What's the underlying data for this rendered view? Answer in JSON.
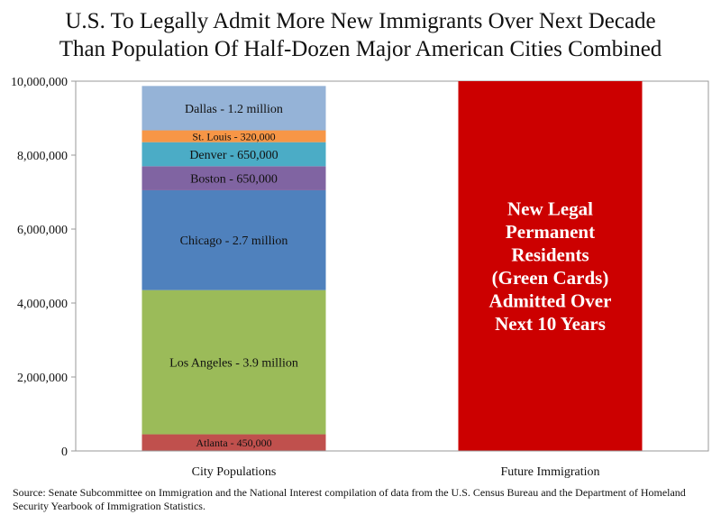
{
  "title_lines": [
    "U.S. To Legally Admit More New Immigrants Over Next Decade",
    "Than Population Of Half-Dozen Major American Cities Combined"
  ],
  "source": "Source: Senate Subcommittee on Immigration and the National Interest compilation of data from the U.S. Census Bureau and the Department of Homeland Security Yearbook of Immigration Statistics.",
  "colors": {
    "atlanta": "#C0504D",
    "los_angeles": "#9BBB59",
    "chicago": "#4F81BD",
    "boston": "#8064A2",
    "denver": "#4BACC6",
    "st_louis": "#F79646",
    "dallas": "#95B3D7",
    "future": "#CC0000",
    "axis": "#999999"
  },
  "chart_data": {
    "type": "bar",
    "stacked": true,
    "categories": [
      "City Populations",
      "Future Immigration"
    ],
    "ylim": [
      0,
      10000000
    ],
    "yticks": [
      0,
      2000000,
      4000000,
      6000000,
      8000000,
      10000000
    ],
    "ytick_labels": [
      "0",
      "2,000,000",
      "4,000,000",
      "6,000,000",
      "8,000,000",
      "10,000,000"
    ],
    "series": [
      {
        "key": "atlanta",
        "values": [
          450000,
          0
        ],
        "labels": [
          "Atlanta - 450,000",
          ""
        ]
      },
      {
        "key": "los_angeles",
        "values": [
          3900000,
          0
        ],
        "labels": [
          "Los Angeles - 3.9 million",
          ""
        ]
      },
      {
        "key": "chicago",
        "values": [
          2700000,
          0
        ],
        "labels": [
          "Chicago - 2.7 million",
          ""
        ]
      },
      {
        "key": "boston",
        "values": [
          650000,
          0
        ],
        "labels": [
          "Boston - 650,000",
          ""
        ]
      },
      {
        "key": "denver",
        "values": [
          650000,
          0
        ],
        "labels": [
          "Denver - 650,000",
          ""
        ]
      },
      {
        "key": "st_louis",
        "values": [
          320000,
          0
        ],
        "labels": [
          "St. Louis - 320,000",
          ""
        ]
      },
      {
        "key": "dallas",
        "values": [
          1200000,
          0
        ],
        "labels": [
          "Dallas - 1.2 million",
          ""
        ]
      },
      {
        "key": "future",
        "values": [
          0,
          10000000
        ],
        "labels": [
          "",
          "New Legal Permanent Residents (Green Cards) Admitted Over Next 10 Years"
        ]
      }
    ],
    "future_label_lines": [
      "New Legal",
      "Permanent",
      "Residents",
      "(Green Cards)",
      "Admitted Over",
      "Next 10 Years"
    ],
    "grid": false,
    "legend": "none"
  }
}
